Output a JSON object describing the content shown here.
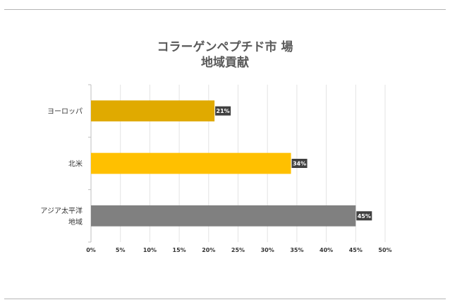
{
  "chart_data": {
    "type": "bar",
    "orientation": "horizontal",
    "title_lines": [
      "コラーゲンペプチド市 場",
      "地域貢献"
    ],
    "categories": [
      {
        "label_lines": [
          "ヨーロッパ"
        ]
      },
      {
        "label_lines": [
          "北米"
        ]
      },
      {
        "label_lines": [
          "アジア太平洋",
          "地域"
        ]
      }
    ],
    "values": [
      21,
      34,
      45
    ],
    "data_labels": [
      "21%",
      "34%",
      "45%"
    ],
    "colors": [
      "#e0aa00",
      "#ffc000",
      "#808080"
    ],
    "xlim": [
      0,
      50
    ],
    "xticks": [
      0,
      5,
      10,
      15,
      20,
      25,
      30,
      35,
      40,
      45,
      50
    ],
    "tick_labels": [
      "0%",
      "5%",
      "10%",
      "15%",
      "20%",
      "25%",
      "30%",
      "35%",
      "40%",
      "45%",
      "50%"
    ],
    "grid": true,
    "legend": "none"
  }
}
